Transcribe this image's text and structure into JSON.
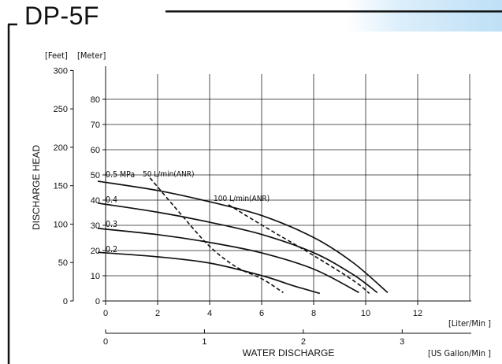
{
  "title": "DP-5F",
  "chart_data": {
    "type": "line",
    "title": "DP-5F",
    "xlabel": "WATER DISCHARGE",
    "ylabel": "DISCHARGE HEAD",
    "x_unit_primary": "[Liter/Min ]",
    "x_unit_secondary": "[US Gallon/Min ]",
    "y_unit_feet": "[Feet]",
    "y_unit_meter": "[Meter]",
    "xlim": [
      0,
      14
    ],
    "ylim": [
      0,
      90
    ],
    "x_ticks": [
      "0",
      "2",
      "4",
      "6",
      "8",
      "10",
      "12"
    ],
    "x2_ticks": [
      "0",
      "1",
      "2",
      "3"
    ],
    "y_meter_ticks": [
      "0",
      "10",
      "20",
      "30",
      "40",
      "50",
      "60",
      "70",
      "80"
    ],
    "y_feet_ticks": [
      "0",
      "50",
      "100",
      "150",
      "200",
      "250",
      "300"
    ],
    "grid": true,
    "series": [
      {
        "name": "0.5 MPa",
        "style": "solid",
        "points": [
          [
            -0.3,
            47.5
          ],
          [
            2,
            43.8
          ],
          [
            4,
            39.3
          ],
          [
            6,
            33.8
          ],
          [
            8,
            25.0
          ],
          [
            9.5,
            15.0
          ],
          [
            10.8,
            3.3
          ]
        ]
      },
      {
        "name": "0.4",
        "style": "solid",
        "points": [
          [
            -0.3,
            38.8
          ],
          [
            2,
            35.2
          ],
          [
            4,
            31.2
          ],
          [
            6,
            26.3
          ],
          [
            8,
            19.0
          ],
          [
            9.5,
            10.3
          ],
          [
            10.4,
            3.3
          ]
        ]
      },
      {
        "name": "0.3",
        "style": "solid",
        "points": [
          [
            -0.3,
            28.8
          ],
          [
            2,
            26.3
          ],
          [
            4,
            23.2
          ],
          [
            6,
            19.0
          ],
          [
            8,
            12.5
          ],
          [
            9.7,
            3.3
          ]
        ]
      },
      {
        "name": "0.2",
        "style": "solid",
        "points": [
          [
            -0.3,
            19.3
          ],
          [
            2,
            17.5
          ],
          [
            4,
            15.0
          ],
          [
            6,
            10.0
          ],
          [
            7.2,
            6.0
          ],
          [
            8.2,
            3.0
          ]
        ]
      },
      {
        "name": "50 L/min(ANR)",
        "style": "dashed",
        "points": [
          [
            1.7,
            48.8
          ],
          [
            3,
            33.0
          ],
          [
            4,
            21.5
          ],
          [
            5,
            13.5
          ],
          [
            6,
            8.7
          ],
          [
            6.8,
            3.3
          ]
        ]
      },
      {
        "name": "100 L/min(ANR)",
        "style": "dashed",
        "points": [
          [
            4.7,
            38.2
          ],
          [
            6,
            30.0
          ],
          [
            8,
            17.8
          ],
          [
            9.5,
            8.0
          ],
          [
            10.1,
            3.0
          ]
        ]
      }
    ]
  }
}
